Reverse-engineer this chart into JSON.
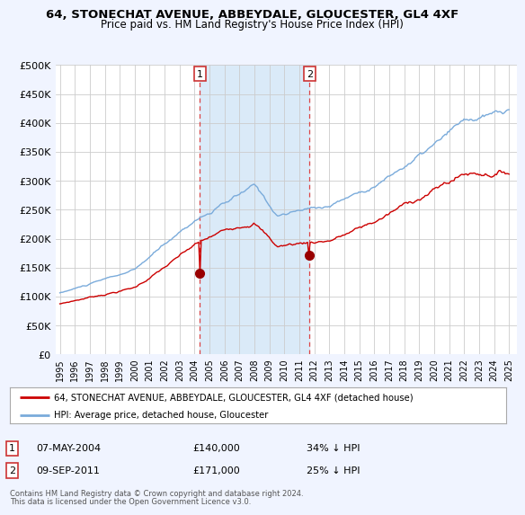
{
  "title": "64, STONECHAT AVENUE, ABBEYDALE, GLOUCESTER, GL4 4XF",
  "subtitle": "Price paid vs. HM Land Registry's House Price Index (HPI)",
  "sale1_date": "07-MAY-2004",
  "sale1_price": 140000,
  "sale2_date": "09-SEP-2011",
  "sale2_price": 171000,
  "legend_property": "64, STONECHAT AVENUE, ABBEYDALE, GLOUCESTER, GL4 4XF (detached house)",
  "legend_hpi": "HPI: Average price, detached house, Gloucester",
  "footnote1": "Contains HM Land Registry data © Crown copyright and database right 2024.",
  "footnote2": "This data is licensed under the Open Government Licence v3.0.",
  "ylim": [
    0,
    500000
  ],
  "yticks": [
    0,
    50000,
    100000,
    150000,
    200000,
    250000,
    300000,
    350000,
    400000,
    450000,
    500000
  ],
  "ytick_labels": [
    "£0",
    "£50K",
    "£100K",
    "£150K",
    "£200K",
    "£250K",
    "£300K",
    "£350K",
    "£400K",
    "£450K",
    "£500K"
  ],
  "background_color": "#f0f4ff",
  "plot_bg_color": "#ffffff",
  "line_property_color": "#cc0000",
  "line_hpi_color": "#7aabdb",
  "sale_marker_color": "#990000",
  "vline_color": "#dd4444",
  "shade_color": "#daeaf8",
  "sale1_x": 2004.35,
  "sale2_x": 2011.67,
  "xlim_left": 1994.7,
  "xlim_right": 2025.5,
  "xtick_years": [
    1995,
    1996,
    1997,
    1998,
    1999,
    2000,
    2001,
    2002,
    2003,
    2004,
    2005,
    2006,
    2007,
    2008,
    2009,
    2010,
    2011,
    2012,
    2013,
    2014,
    2015,
    2016,
    2017,
    2018,
    2019,
    2020,
    2021,
    2022,
    2023,
    2024,
    2025
  ]
}
